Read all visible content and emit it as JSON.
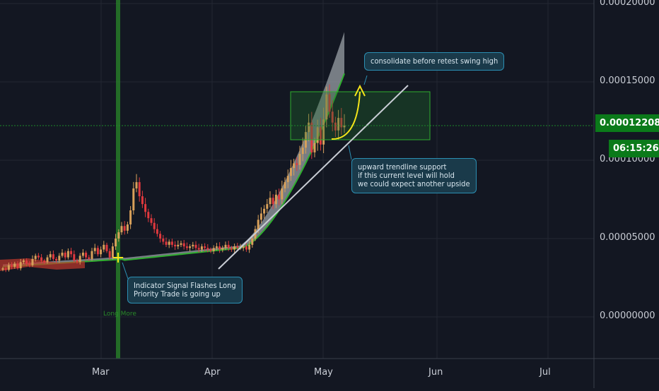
{
  "colors": {
    "background": "#131722",
    "grid": "#232733",
    "up": "#d8a05a",
    "down": "#e0393e",
    "signal_line": "#2a8a2a",
    "band_fill": "#9aa0a6",
    "band_edge": "#2fae2f",
    "trendline": "#c9cdd5",
    "zone": "#1f6b2a",
    "current_price": "#0b7a1a",
    "annotation_bg": "#1a3a4a",
    "annotation_border": "#2b8fb3",
    "arrow": "#f5e51a"
  },
  "chart_data": {
    "type": "candlestick",
    "x_ticks": [
      "Mar",
      "Apr",
      "May",
      "Jun",
      "Jul"
    ],
    "y_ticks": [
      "0.00020000",
      "0.00015000",
      "0.00010000",
      "0.00005000",
      "0.00000000"
    ],
    "ylim": [
      -6e-06,
      0.0002
    ],
    "current_price": "0.00012208",
    "countdown": "06:15:26",
    "signal_label": "Long More",
    "annotations": {
      "consolidate": "consolidate before retest swing high",
      "trendline": "upward trendline support\nif this current level will hold\nwe could expect another upside",
      "signal": "Indicator Signal Flashes Long\nPriority Trade is going up"
    },
    "candles": {
      "start_date": "2019-02-01",
      "close": [
        3.1e-05,
        3e-05,
        3.3e-05,
        3.2e-05,
        3.4e-05,
        3.1e-05,
        3.5e-05,
        3.6e-05,
        3.4e-05,
        3.3e-05,
        3.7e-05,
        3.9e-05,
        3.8e-05,
        3.6e-05,
        3.5e-05,
        3.8e-05,
        4e-05,
        3.7e-05,
        3.6e-05,
        3.9e-05,
        4.1e-05,
        3.8e-05,
        4.2e-05,
        4e-05,
        3.6e-05,
        3.5e-05,
        3.9e-05,
        4.1e-05,
        3.8e-05,
        3.7e-05,
        4.2e-05,
        4.4e-05,
        4e-05,
        4.3e-05,
        4.6e-05,
        4.2e-05,
        3.8e-05,
        4.5e-05,
        5e-05,
        5.4e-05,
        5.8e-05,
        5.5e-05,
        5.9e-05,
        6.8e-05,
        8.2e-05,
        8.6e-05,
        7.7e-05,
        7.2e-05,
        6.7e-05,
        6.3e-05,
        6e-05,
        5.6e-05,
        5.3e-05,
        5e-05,
        4.8e-05,
        4.6e-05,
        4.8e-05,
        4.6e-05,
        4.5e-05,
        4.6e-05,
        4.7e-05,
        4.5e-05,
        4.4e-05,
        4.5e-05,
        4.6e-05,
        4.4e-05,
        4.3e-05,
        4.5e-05,
        4.4e-05,
        4.3e-05,
        4.2e-05,
        4.4e-05,
        4.5e-05,
        4.3e-05,
        4.4e-05,
        4.6e-05,
        4.4e-05,
        4.3e-05,
        4.5e-05,
        4.4e-05,
        4.4e-05,
        4.5e-05,
        4.3e-05,
        4.6e-05,
        5e-05,
        5.6e-05,
        6.2e-05,
        6.6e-05,
        6.9e-05,
        7.2e-05,
        7.6e-05,
        7.2e-05,
        7.8e-05,
        7.5e-05,
        8.2e-05,
        8.6e-05,
        9e-05,
        9.5e-05,
        9.8e-05,
        9.7e-05,
        0.000104,
        0.000108,
        0.000118,
        0.000124,
        0.000105,
        0.000111,
        0.000121,
        0.00011,
        0.000126,
        0.000142,
        0.000131,
        0.000124,
        0.000119,
        0.000127,
        0.000121,
        0.00012208
      ]
    }
  }
}
